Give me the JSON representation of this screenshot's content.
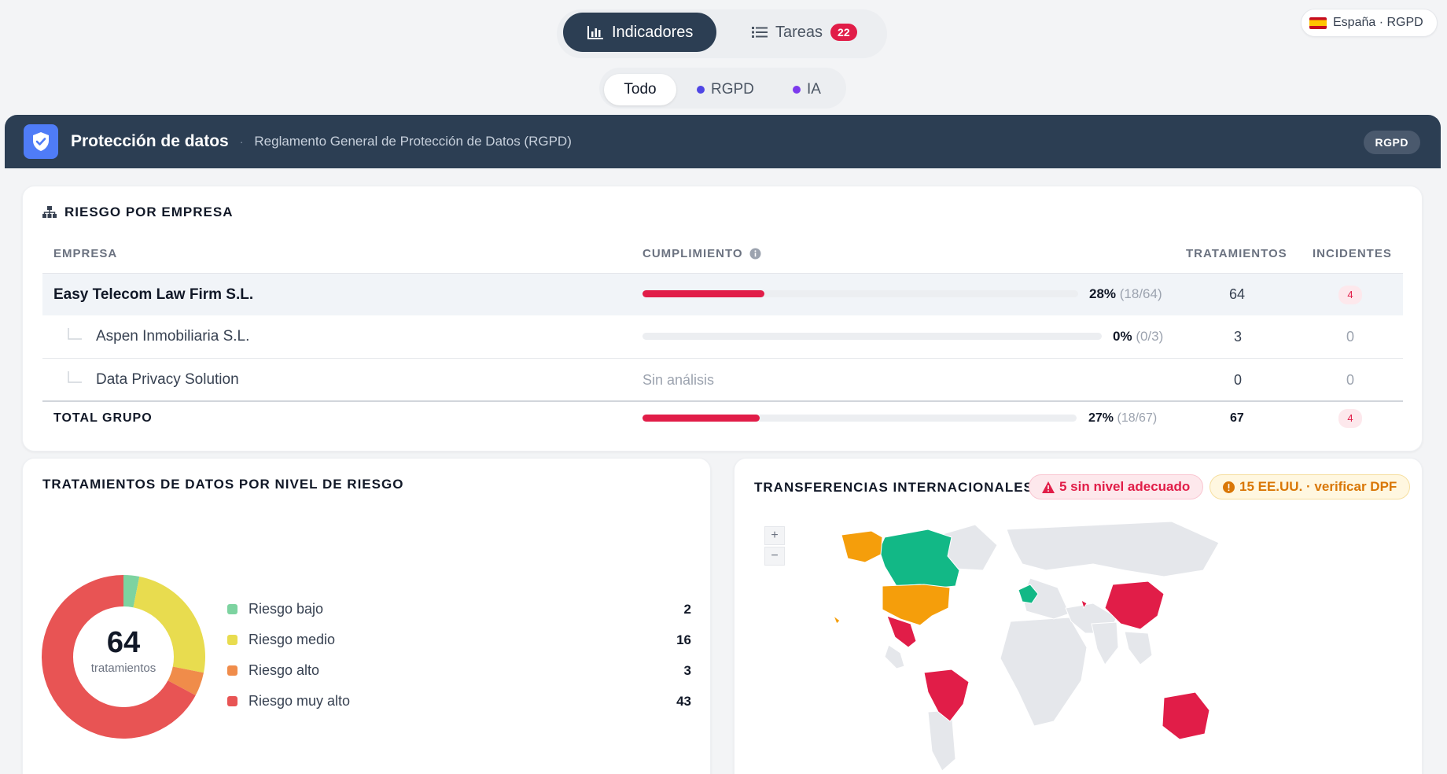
{
  "nav": {
    "indicadores": "Indicadores",
    "tareas": "Tareas",
    "tareas_count": "22"
  },
  "lang": "España · RGPD",
  "filters": {
    "todo": "Todo",
    "rgpd": "RGPD",
    "ia": "IA",
    "rgpd_color": "#4f46e5",
    "ia_color": "#7c3aed"
  },
  "header": {
    "title": "Protección de datos",
    "subtitle": "Reglamento General de Protección de Datos (RGPD)",
    "tag": "RGPD"
  },
  "risk": {
    "title": "RIESGO POR EMPRESA",
    "cols": {
      "empresa": "EMPRESA",
      "cumplimiento": "CUMPLIMIENTO",
      "tratamientos": "TRATAMIENTOS",
      "incidentes": "INCIDENTES"
    },
    "rows": [
      {
        "name": "Easy Telecom Law Firm S.L.",
        "pct": "28%",
        "frac": "(18/64)",
        "progress": 0.28,
        "tratamientos": "64",
        "incidentes": "4"
      },
      {
        "name": "Aspen Inmobiliaria S.L.",
        "pct": "0%",
        "frac": "(0/3)",
        "progress": 0.0,
        "tratamientos": "3",
        "incidentes": "0"
      },
      {
        "name": "Data Privacy Solution",
        "no_analysis": "Sin análisis",
        "tratamientos": "0",
        "incidentes": "0"
      }
    ],
    "total": {
      "label": "TOTAL GRUPO",
      "pct": "27%",
      "frac": "(18/67)",
      "progress": 0.27,
      "tratamientos": "67",
      "incidentes": "4"
    }
  },
  "donut": {
    "title": "TRATAMIENTOS DE DATOS POR NIVEL DE RIESGO",
    "total": "64",
    "total_label": "tratamientos"
  },
  "chart_data": {
    "type": "pie",
    "categories": [
      "Riesgo bajo",
      "Riesgo medio",
      "Riesgo alto",
      "Riesgo muy alto"
    ],
    "values": [
      2,
      16,
      3,
      43
    ],
    "colors": [
      "#7dd3a0",
      "#e8dc4f",
      "#f08c4a",
      "#e85454"
    ]
  },
  "map": {
    "title": "TRANSFERENCIAS INTERNACIONALES",
    "alert_red": "5 sin nivel adecuado",
    "alert_yellow": "15 EE.UU. · verificar DPF",
    "zoom_in": "+",
    "zoom_out": "−",
    "colors": {
      "adequate": "#12b886",
      "us": "#f59e0b",
      "inadequate": "#e11d48",
      "other": "#e5e7eb"
    }
  }
}
